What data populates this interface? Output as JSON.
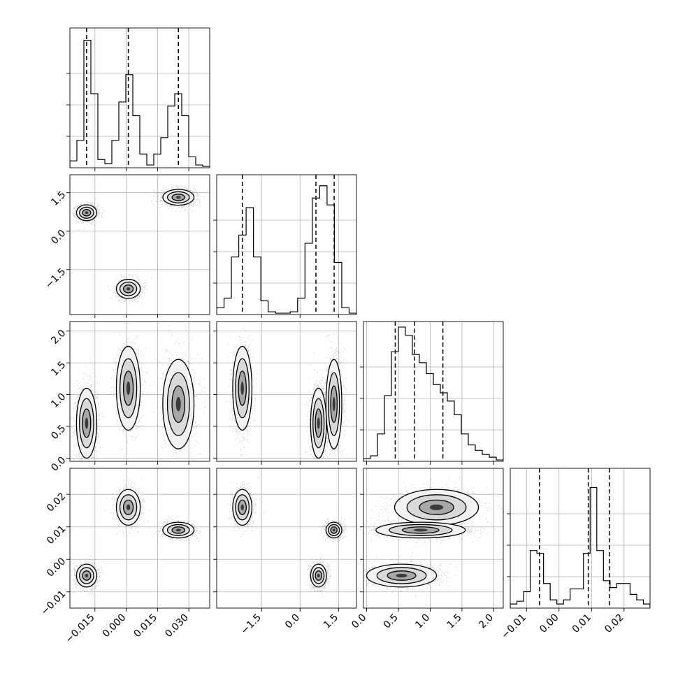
{
  "chart_data": {
    "type": "corner",
    "grid": true,
    "parameters": [
      "",
      "",
      "",
      ""
    ],
    "ranges": [
      [
        -0.027,
        0.04
      ],
      [
        -3.25,
        2.2
      ],
      [
        -0.05,
        2.15
      ],
      [
        -0.015,
        0.028
      ]
    ],
    "ticks": [
      {
        "values": [
          -0.015,
          0.0,
          0.015,
          0.03
        ],
        "labels": [
          "−0.015",
          "0.000",
          "0.015",
          "0.030"
        ]
      },
      {
        "values": [
          -1.5,
          0.0,
          1.5
        ],
        "labels": [
          "−1.5",
          "0.0",
          "1.5"
        ]
      },
      {
        "values": [
          0.0,
          0.5,
          1.0,
          1.5,
          2.0
        ],
        "labels": [
          "0.0",
          "0.5",
          "1.0",
          "1.5",
          "2.0"
        ]
      },
      {
        "values": [
          -0.01,
          0.0,
          0.01,
          0.02
        ],
        "labels": [
          "−0.01",
          "0.00",
          "0.01",
          "0.02"
        ]
      }
    ],
    "histograms": [
      {
        "counts": [
          0.05,
          0.2,
          0.93,
          0.54,
          0.06,
          0.03,
          0.2,
          0.48,
          0.68,
          0.38,
          0.1,
          0.02,
          0.1,
          0.22,
          0.45,
          0.54,
          0.38,
          0.08,
          0.02,
          0.01
        ],
        "quantiles": [
          -0.019,
          0.001,
          0.025
        ]
      },
      {
        "counts": [
          0.05,
          0.12,
          0.42,
          0.58,
          0.78,
          0.42,
          0.1,
          0.02,
          0.01,
          0.01,
          0.02,
          0.12,
          0.52,
          0.85,
          0.94,
          0.8,
          0.38,
          0.05,
          0.01
        ],
        "quantiles": [
          -2.25,
          0.62,
          1.33
        ]
      },
      {
        "counts": [
          0.02,
          0.04,
          0.2,
          0.48,
          0.8,
          0.98,
          0.92,
          0.78,
          0.72,
          0.64,
          0.56,
          0.5,
          0.44,
          0.34,
          0.2,
          0.12,
          0.08,
          0.05,
          0.03,
          0.01
        ],
        "quantiles": [
          0.45,
          0.75,
          1.2
        ]
      },
      {
        "counts": [
          0.03,
          0.05,
          0.12,
          0.42,
          0.4,
          0.18,
          0.06,
          0.03,
          0.06,
          0.14,
          0.14,
          0.4,
          0.88,
          0.42,
          0.2,
          0.15,
          0.18,
          0.18,
          0.1,
          0.06,
          0.03
        ],
        "quantiles": [
          -0.006,
          0.009,
          0.0155
        ]
      }
    ],
    "clusters": [
      {
        "name": "",
        "center": [
          -0.019,
          0.72,
          0.55,
          -0.005
        ],
        "sd": [
          0.0022,
          0.14,
          0.25,
          0.0016
        ],
        "density": 1.0
      },
      {
        "name": "",
        "center": [
          0.001,
          -2.25,
          1.1,
          0.016
        ],
        "sd": [
          0.0026,
          0.17,
          0.3,
          0.0025
        ],
        "density": 0.7
      },
      {
        "name": "",
        "center": [
          0.025,
          1.32,
          0.85,
          0.009
        ],
        "sd": [
          0.0034,
          0.14,
          0.32,
          0.0011
        ],
        "density": 0.85
      }
    ],
    "contour_levels": [
      0.35,
      0.65,
      0.9
    ]
  }
}
